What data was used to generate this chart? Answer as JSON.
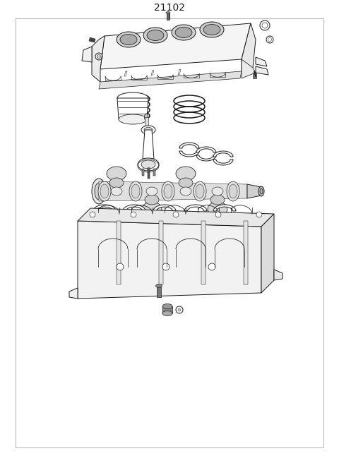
{
  "title": "21102",
  "bg_color": "#ffffff",
  "line_color": "#1a1a1a",
  "border_color": "#999999",
  "title_fontsize": 10,
  "fig_width": 4.8,
  "fig_height": 6.56,
  "dpi": 100
}
